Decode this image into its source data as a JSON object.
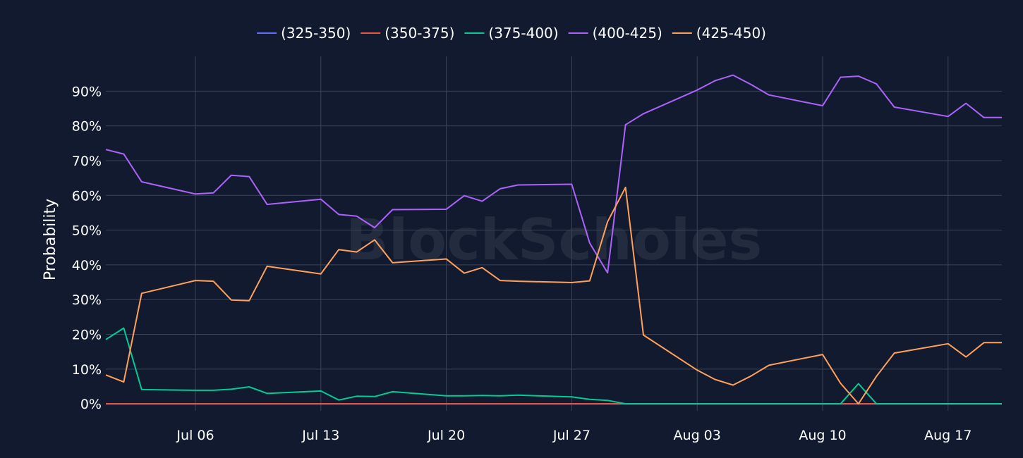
{
  "watermark": "BlockScholes",
  "colors": {
    "background": "#111a2e",
    "grid": "#3b4457"
  },
  "chart_data": {
    "type": "line",
    "title": "",
    "xlabel": "",
    "ylabel": "Probability",
    "x_tick_labels": [
      "Jul 06",
      "Jul 13",
      "Jul 20",
      "Jul 27",
      "Aug 03",
      "Aug 10",
      "Aug 17"
    ],
    "x_tick_dates": [
      "Jul 06",
      "Jul 13",
      "Jul 20",
      "Jul 27",
      "Aug 03",
      "Aug 10",
      "Aug 17"
    ],
    "y_tick_labels": [
      "0%",
      "10%",
      "20%",
      "30%",
      "40%",
      "50%",
      "60%",
      "70%",
      "80%",
      "90%"
    ],
    "y_ticks": [
      0,
      10,
      20,
      30,
      40,
      50,
      60,
      70,
      80,
      90
    ],
    "ylim": [
      -2,
      100
    ],
    "xlim": [
      "Jul 01",
      "Aug 20"
    ],
    "legend_position": "top-center",
    "grid": true,
    "series": [
      {
        "name": "(325-350)",
        "color": "#636efa",
        "points": [
          [
            "Jul 01",
            0
          ],
          [
            "Jul 02",
            0
          ],
          [
            "Jul 03",
            0
          ],
          [
            "Jul 06",
            0
          ],
          [
            "Jul 07",
            0
          ],
          [
            "Jul 08",
            0
          ],
          [
            "Jul 09",
            0
          ],
          [
            "Jul 10",
            0
          ],
          [
            "Jul 13",
            0
          ],
          [
            "Jul 14",
            0
          ],
          [
            "Jul 15",
            0
          ],
          [
            "Jul 16",
            0
          ],
          [
            "Jul 17",
            0
          ],
          [
            "Jul 20",
            0
          ],
          [
            "Jul 21",
            0
          ],
          [
            "Jul 22",
            0
          ],
          [
            "Jul 23",
            0
          ],
          [
            "Jul 24",
            0
          ],
          [
            "Jul 27",
            0
          ],
          [
            "Jul 28",
            0
          ],
          [
            "Jul 29",
            0
          ],
          [
            "Jul 30",
            0
          ],
          [
            "Jul 31",
            0
          ],
          [
            "Aug 03",
            0
          ],
          [
            "Aug 04",
            0
          ],
          [
            "Aug 05",
            0
          ],
          [
            "Aug 06",
            0
          ],
          [
            "Aug 07",
            0
          ],
          [
            "Aug 10",
            0
          ],
          [
            "Aug 11",
            0
          ],
          [
            "Aug 12",
            0
          ],
          [
            "Aug 13",
            0
          ],
          [
            "Aug 14",
            0
          ],
          [
            "Aug 17",
            0
          ],
          [
            "Aug 18",
            0
          ],
          [
            "Aug 19",
            0
          ],
          [
            "Aug 20",
            0
          ]
        ]
      },
      {
        "name": "(350-375)",
        "color": "#ef553b",
        "points": [
          [
            "Jul 01",
            0
          ],
          [
            "Jul 02",
            0
          ],
          [
            "Jul 03",
            0
          ],
          [
            "Jul 06",
            0
          ],
          [
            "Jul 07",
            0
          ],
          [
            "Jul 08",
            0
          ],
          [
            "Jul 09",
            0
          ],
          [
            "Jul 10",
            0
          ],
          [
            "Jul 13",
            0
          ],
          [
            "Jul 14",
            0
          ],
          [
            "Jul 15",
            0
          ],
          [
            "Jul 16",
            0
          ],
          [
            "Jul 17",
            0
          ],
          [
            "Jul 20",
            0
          ],
          [
            "Jul 21",
            0
          ],
          [
            "Jul 22",
            0
          ],
          [
            "Jul 23",
            0
          ],
          [
            "Jul 24",
            0
          ],
          [
            "Jul 27",
            0
          ],
          [
            "Jul 28",
            0
          ],
          [
            "Jul 29",
            0
          ],
          [
            "Jul 30",
            0
          ],
          [
            "Jul 31",
            0
          ],
          [
            "Aug 03",
            0
          ],
          [
            "Aug 04",
            0
          ],
          [
            "Aug 05",
            0
          ],
          [
            "Aug 06",
            0
          ],
          [
            "Aug 07",
            0
          ],
          [
            "Aug 10",
            0
          ],
          [
            "Aug 11",
            0
          ],
          [
            "Aug 12",
            0
          ],
          [
            "Aug 13",
            0
          ],
          [
            "Aug 14",
            0
          ],
          [
            "Aug 17",
            0
          ],
          [
            "Aug 18",
            0
          ],
          [
            "Aug 19",
            0
          ],
          [
            "Aug 20",
            0
          ]
        ]
      },
      {
        "name": "(375-400)",
        "color": "#00cc96",
        "points": [
          [
            "Jul 01",
            18.5
          ],
          [
            "Jul 02",
            21.8
          ],
          [
            "Jul 03",
            4.1
          ],
          [
            "Jul 06",
            3.9
          ],
          [
            "Jul 07",
            3.9
          ],
          [
            "Jul 08",
            4.2
          ],
          [
            "Jul 09",
            4.9
          ],
          [
            "Jul 10",
            3.0
          ],
          [
            "Jul 13",
            3.7
          ],
          [
            "Jul 14",
            1.1
          ],
          [
            "Jul 15",
            2.2
          ],
          [
            "Jul 16",
            2.1
          ],
          [
            "Jul 17",
            3.5
          ],
          [
            "Jul 20",
            2.3
          ],
          [
            "Jul 21",
            2.3
          ],
          [
            "Jul 22",
            2.4
          ],
          [
            "Jul 23",
            2.3
          ],
          [
            "Jul 24",
            2.5
          ],
          [
            "Jul 27",
            2.0
          ],
          [
            "Jul 28",
            1.3
          ],
          [
            "Jul 29",
            1.0
          ],
          [
            "Jul 30",
            0
          ],
          [
            "Jul 31",
            0
          ],
          [
            "Aug 03",
            0
          ],
          [
            "Aug 04",
            0
          ],
          [
            "Aug 05",
            0
          ],
          [
            "Aug 06",
            0
          ],
          [
            "Aug 07",
            0
          ],
          [
            "Aug 10",
            0
          ],
          [
            "Aug 11",
            0
          ],
          [
            "Aug 12",
            5.8
          ],
          [
            "Aug 13",
            0
          ],
          [
            "Aug 14",
            0
          ],
          [
            "Aug 17",
            0
          ],
          [
            "Aug 18",
            0
          ],
          [
            "Aug 19",
            0
          ],
          [
            "Aug 20",
            0
          ]
        ]
      },
      {
        "name": "(400-425)",
        "color": "#ab63fa",
        "points": [
          [
            "Jul 01",
            73.2
          ],
          [
            "Jul 02",
            71.9
          ],
          [
            "Jul 03",
            63.9
          ],
          [
            "Jul 06",
            60.4
          ],
          [
            "Jul 07",
            60.7
          ],
          [
            "Jul 08",
            65.8
          ],
          [
            "Jul 09",
            65.4
          ],
          [
            "Jul 10",
            57.4
          ],
          [
            "Jul 13",
            58.9
          ],
          [
            "Jul 14",
            54.5
          ],
          [
            "Jul 15",
            54.0
          ],
          [
            "Jul 16",
            50.7
          ],
          [
            "Jul 17",
            55.9
          ],
          [
            "Jul 20",
            56.0
          ],
          [
            "Jul 21",
            59.9
          ],
          [
            "Jul 22",
            58.3
          ],
          [
            "Jul 23",
            61.9
          ],
          [
            "Jul 24",
            63.0
          ],
          [
            "Jul 27",
            63.2
          ],
          [
            "Jul 28",
            46.3
          ],
          [
            "Jul 29",
            37.7
          ],
          [
            "Jul 30",
            80.3
          ],
          [
            "Jul 31",
            83.5
          ],
          [
            "Aug 03",
            90.3
          ],
          [
            "Aug 04",
            93.0
          ],
          [
            "Aug 05",
            94.6
          ],
          [
            "Aug 06",
            91.9
          ],
          [
            "Aug 07",
            88.9
          ],
          [
            "Aug 10",
            85.8
          ],
          [
            "Aug 11",
            94.0
          ],
          [
            "Aug 12",
            94.3
          ],
          [
            "Aug 13",
            92.1
          ],
          [
            "Aug 14",
            85.4
          ],
          [
            "Aug 17",
            82.7
          ],
          [
            "Aug 18",
            86.5
          ],
          [
            "Aug 19",
            82.4
          ],
          [
            "Aug 20",
            82.4
          ]
        ]
      },
      {
        "name": "(425-450)",
        "color": "#ffa15a",
        "points": [
          [
            "Jul 01",
            8.3
          ],
          [
            "Jul 02",
            6.3
          ],
          [
            "Jul 03",
            31.8
          ],
          [
            "Jul 06",
            35.5
          ],
          [
            "Jul 07",
            35.3
          ],
          [
            "Jul 08",
            29.9
          ],
          [
            "Jul 09",
            29.7
          ],
          [
            "Jul 10",
            39.6
          ],
          [
            "Jul 13",
            37.4
          ],
          [
            "Jul 14",
            44.4
          ],
          [
            "Jul 15",
            43.7
          ],
          [
            "Jul 16",
            47.2
          ],
          [
            "Jul 17",
            40.6
          ],
          [
            "Jul 20",
            41.7
          ],
          [
            "Jul 21",
            37.6
          ],
          [
            "Jul 22",
            39.2
          ],
          [
            "Jul 23",
            35.5
          ],
          [
            "Jul 24",
            35.3
          ],
          [
            "Jul 27",
            34.9
          ],
          [
            "Jul 28",
            35.4
          ],
          [
            "Jul 29",
            52.4
          ],
          [
            "Jul 30",
            62.3
          ],
          [
            "Jul 31",
            19.8
          ],
          [
            "Aug 03",
            9.7
          ],
          [
            "Aug 04",
            7.0
          ],
          [
            "Aug 05",
            5.4
          ],
          [
            "Aug 06",
            8.0
          ],
          [
            "Aug 07",
            11.1
          ],
          [
            "Aug 10",
            14.2
          ],
          [
            "Aug 11",
            5.9
          ],
          [
            "Aug 12",
            0
          ],
          [
            "Aug 13",
            7.9
          ],
          [
            "Aug 14",
            14.6
          ],
          [
            "Aug 17",
            17.3
          ],
          [
            "Aug 18",
            13.5
          ],
          [
            "Aug 19",
            17.6
          ],
          [
            "Aug 20",
            17.6
          ]
        ]
      }
    ]
  }
}
